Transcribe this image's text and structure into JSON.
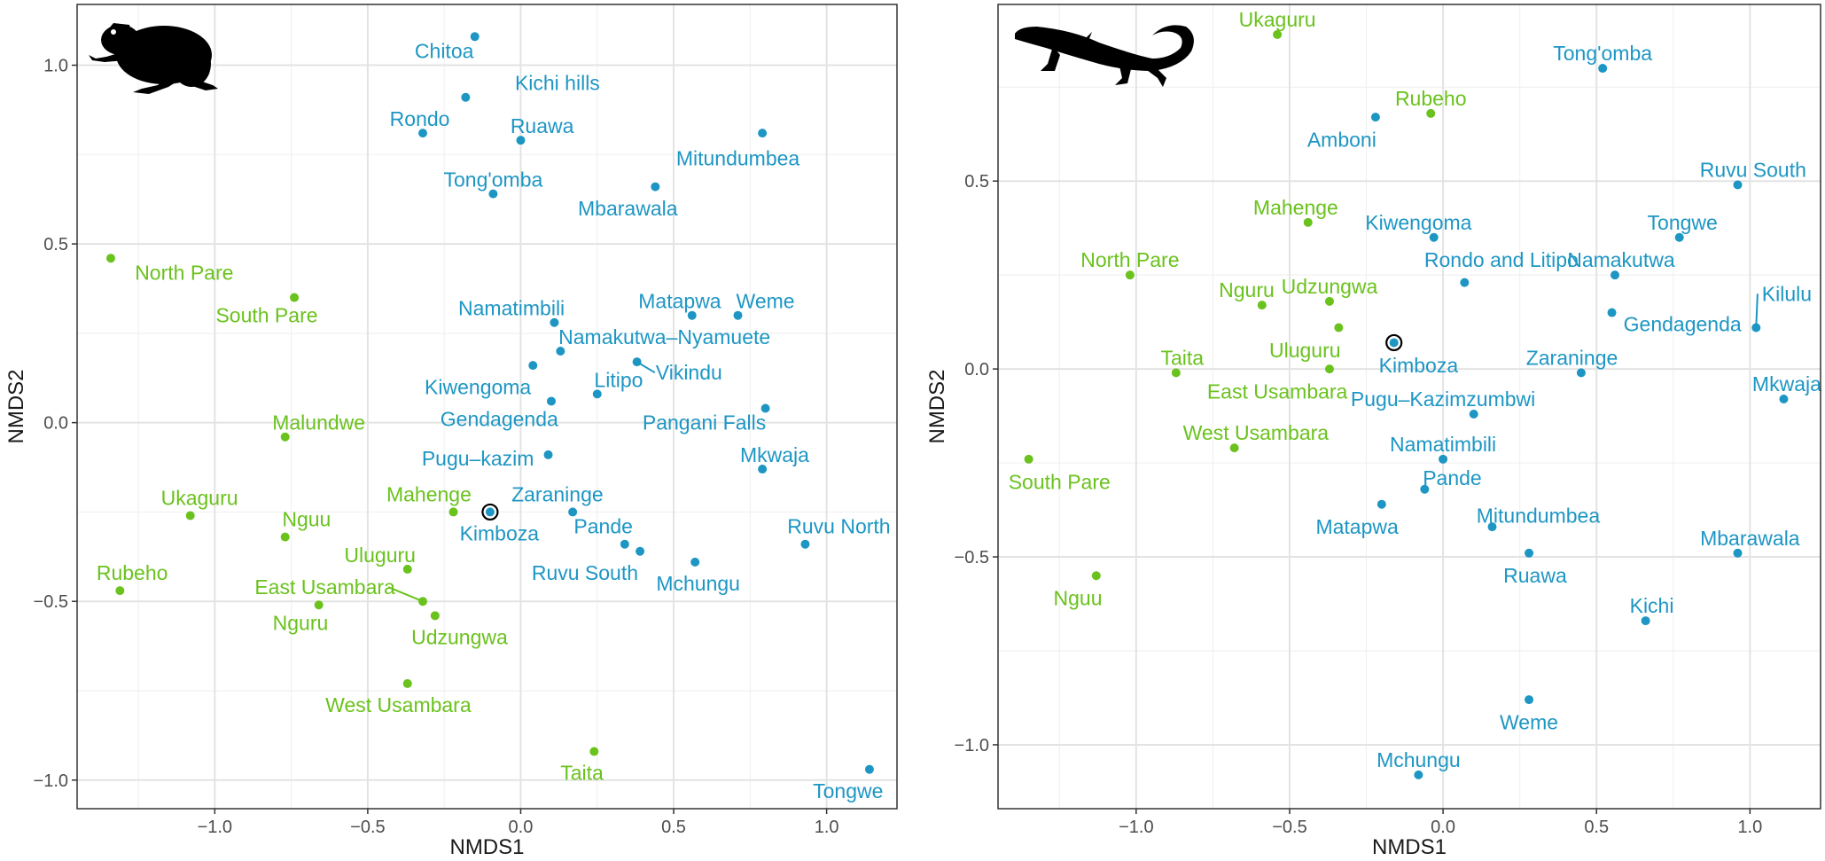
{
  "colors": {
    "green": "#6ac21d",
    "blue": "#1d96c4",
    "highlight": "#000000",
    "grid_major": "#e3e3e3",
    "grid_minor": "#f1f1f1",
    "silhouette": "#000000"
  },
  "chart_data": [
    {
      "type": "scatter",
      "silhouette": "frog-icon",
      "xlabel": "NMDS1",
      "ylabel": "NMDS2",
      "xlim": [
        -1.45,
        1.23
      ],
      "ylim": [
        -1.08,
        1.17
      ],
      "xticks": [
        -1.0,
        -0.5,
        0.0,
        0.5,
        1.0
      ],
      "xtick_labels": [
        "−1.0",
        "−0.5",
        "0.0",
        "0.5",
        "1.0"
      ],
      "yticks": [
        -1.0,
        -0.5,
        0.0,
        0.5,
        1.0
      ],
      "ytick_labels": [
        "−1.0",
        "−0.5",
        "0.0",
        "0.5",
        "1.0"
      ],
      "grid": true,
      "points": [
        {
          "label": "Chitoa",
          "x": -0.15,
          "y": 1.08,
          "group": "blue",
          "lx": -0.25,
          "ly": 1.04
        },
        {
          "label": "Kichi hills",
          "x": -0.18,
          "y": 0.91,
          "group": "blue",
          "lx": 0.12,
          "ly": 0.95
        },
        {
          "label": "Rondo",
          "x": -0.32,
          "y": 0.81,
          "group": "blue",
          "lx": -0.33,
          "ly": 0.85
        },
        {
          "label": "Ruawa",
          "x": 0.0,
          "y": 0.79,
          "group": "blue",
          "lx": 0.07,
          "ly": 0.83
        },
        {
          "label": "Mitundumbea",
          "x": 0.79,
          "y": 0.81,
          "group": "blue",
          "lx": 0.71,
          "ly": 0.74
        },
        {
          "label": "Tong'omba",
          "x": -0.09,
          "y": 0.64,
          "group": "blue",
          "lx": -0.09,
          "ly": 0.68
        },
        {
          "label": "Mbarawala",
          "x": 0.44,
          "y": 0.66,
          "group": "blue",
          "lx": 0.35,
          "ly": 0.6
        },
        {
          "label": "Namatimbili",
          "x": 0.11,
          "y": 0.28,
          "group": "blue",
          "lx": -0.03,
          "ly": 0.32
        },
        {
          "label": "Matapwa",
          "x": 0.56,
          "y": 0.3,
          "group": "blue",
          "lx": 0.52,
          "ly": 0.34
        },
        {
          "label": "Weme",
          "x": 0.71,
          "y": 0.3,
          "group": "blue",
          "lx": 0.8,
          "ly": 0.34
        },
        {
          "label": "Namakutwa–Nyamuete",
          "x": 0.13,
          "y": 0.2,
          "group": "blue",
          "lx": 0.47,
          "ly": 0.24
        },
        {
          "label": "Vikindu",
          "x": 0.38,
          "y": 0.17,
          "group": "blue",
          "lx": 0.55,
          "ly": 0.14,
          "leader": true
        },
        {
          "label": "Kiwengoma",
          "x": 0.04,
          "y": 0.16,
          "group": "blue",
          "lx": -0.14,
          "ly": 0.1
        },
        {
          "label": "Litipo",
          "x": 0.25,
          "y": 0.08,
          "group": "blue",
          "lx": 0.32,
          "ly": 0.12
        },
        {
          "label": "Gendagenda",
          "x": 0.1,
          "y": 0.06,
          "group": "blue",
          "lx": -0.07,
          "ly": 0.01
        },
        {
          "label": "Pangani Falls",
          "x": 0.8,
          "y": 0.04,
          "group": "blue",
          "lx": 0.6,
          "ly": 0.0
        },
        {
          "label": "Pugu–kazim",
          "x": 0.09,
          "y": -0.09,
          "group": "blue",
          "lx": -0.14,
          "ly": -0.1
        },
        {
          "label": "Mkwaja",
          "x": 0.79,
          "y": -0.13,
          "group": "blue",
          "lx": 0.83,
          "ly": -0.09
        },
        {
          "label": "Zaraninge",
          "x": 0.17,
          "y": -0.25,
          "group": "blue",
          "lx": 0.12,
          "ly": -0.2
        },
        {
          "label": "Kimboza",
          "x": -0.1,
          "y": -0.25,
          "group": "blue",
          "highlight": true,
          "lx": -0.07,
          "ly": -0.31
        },
        {
          "label": "Pande",
          "x": 0.34,
          "y": -0.34,
          "group": "blue",
          "lx": 0.27,
          "ly": -0.29
        },
        {
          "label": "Ruvu North",
          "x": 0.93,
          "y": -0.34,
          "group": "blue",
          "lx": 1.04,
          "ly": -0.29
        },
        {
          "label": "Ruvu South",
          "x": 0.39,
          "y": -0.36,
          "group": "blue",
          "lx": 0.21,
          "ly": -0.42
        },
        {
          "label": "Mchungu",
          "x": 0.57,
          "y": -0.39,
          "group": "blue",
          "lx": 0.58,
          "ly": -0.45
        },
        {
          "label": "Tongwe",
          "x": 1.14,
          "y": -0.97,
          "group": "blue",
          "lx": 1.07,
          "ly": -1.03
        },
        {
          "label": "North Pare",
          "x": -1.34,
          "y": 0.46,
          "group": "green",
          "lx": -1.1,
          "ly": 0.42
        },
        {
          "label": "South Pare",
          "x": -0.74,
          "y": 0.35,
          "group": "green",
          "lx": -0.83,
          "ly": 0.3
        },
        {
          "label": "Malundwe",
          "x": -0.77,
          "y": -0.04,
          "group": "green",
          "lx": -0.66,
          "ly": 0.0
        },
        {
          "label": "Ukaguru",
          "x": -1.08,
          "y": -0.26,
          "group": "green",
          "lx": -1.05,
          "ly": -0.21
        },
        {
          "label": "Nguu",
          "x": -0.77,
          "y": -0.32,
          "group": "green",
          "lx": -0.7,
          "ly": -0.27
        },
        {
          "label": "Mahenge",
          "x": -0.22,
          "y": -0.25,
          "group": "green",
          "lx": -0.3,
          "ly": -0.2
        },
        {
          "label": "Uluguru",
          "x": -0.37,
          "y": -0.41,
          "group": "green",
          "lx": -0.46,
          "ly": -0.37
        },
        {
          "label": "Rubeho",
          "x": -1.31,
          "y": -0.47,
          "group": "green",
          "lx": -1.27,
          "ly": -0.42
        },
        {
          "label": "East Usambara",
          "x": -0.32,
          "y": -0.5,
          "group": "green",
          "lx": -0.64,
          "ly": -0.46,
          "leader": true
        },
        {
          "label": "Nguru",
          "x": -0.66,
          "y": -0.51,
          "group": "green",
          "lx": -0.72,
          "ly": -0.56
        },
        {
          "label": "Udzungwa",
          "x": -0.28,
          "y": -0.54,
          "group": "green",
          "lx": -0.2,
          "ly": -0.6
        },
        {
          "label": "West Usambara",
          "x": -0.37,
          "y": -0.73,
          "group": "green",
          "lx": -0.4,
          "ly": -0.79
        },
        {
          "label": "Taita",
          "x": 0.24,
          "y": -0.92,
          "group": "green",
          "lx": 0.2,
          "ly": -0.98
        }
      ]
    },
    {
      "type": "scatter",
      "silhouette": "gecko-icon",
      "xlabel": "NMDS1",
      "ylabel": "NMDS2",
      "xlim": [
        -1.45,
        1.23
      ],
      "ylim": [
        -1.17,
        0.97
      ],
      "xticks": [
        -1.0,
        -0.5,
        0.0,
        0.5,
        1.0
      ],
      "xtick_labels": [
        "−1.0",
        "−0.5",
        "0.0",
        "0.5",
        "1.0"
      ],
      "yticks": [
        -1.0,
        -0.5,
        0.0,
        0.5
      ],
      "ytick_labels": [
        "−1.0",
        "−0.5",
        "0.0",
        "0.5"
      ],
      "grid": true,
      "points": [
        {
          "label": "Ukaguru",
          "x": -0.54,
          "y": 0.89,
          "group": "green",
          "lx": -0.54,
          "ly": 0.93
        },
        {
          "label": "Rubeho",
          "x": -0.04,
          "y": 0.68,
          "group": "green",
          "lx": -0.04,
          "ly": 0.72
        },
        {
          "label": "Mahenge",
          "x": -0.44,
          "y": 0.39,
          "group": "green",
          "lx": -0.48,
          "ly": 0.43
        },
        {
          "label": "North Pare",
          "x": -1.02,
          "y": 0.25,
          "group": "green",
          "lx": -1.02,
          "ly": 0.29
        },
        {
          "label": "Nguru",
          "x": -0.59,
          "y": 0.17,
          "group": "green",
          "lx": -0.64,
          "ly": 0.21
        },
        {
          "label": "Udzungwa",
          "x": -0.37,
          "y": 0.18,
          "group": "green",
          "lx": -0.37,
          "ly": 0.22
        },
        {
          "label": "Uluguru",
          "x": -0.34,
          "y": 0.11,
          "group": "green",
          "lx": -0.45,
          "ly": 0.05
        },
        {
          "label": "Taita",
          "x": -0.87,
          "y": -0.01,
          "group": "green",
          "lx": -0.85,
          "ly": 0.03
        },
        {
          "label": "East Usambara",
          "x": -0.37,
          "y": 0.0,
          "group": "green",
          "lx": -0.54,
          "ly": -0.06
        },
        {
          "label": "West Usambara",
          "x": -0.68,
          "y": -0.21,
          "group": "green",
          "lx": -0.61,
          "ly": -0.17
        },
        {
          "label": "South Pare",
          "x": -1.35,
          "y": -0.24,
          "group": "green",
          "lx": -1.25,
          "ly": -0.3
        },
        {
          "label": "Nguu",
          "x": -1.13,
          "y": -0.55,
          "group": "green",
          "lx": -1.19,
          "ly": -0.61
        },
        {
          "label": "Tong'omba",
          "x": 0.52,
          "y": 0.8,
          "group": "blue",
          "lx": 0.52,
          "ly": 0.84
        },
        {
          "label": "Amboni",
          "x": -0.22,
          "y": 0.67,
          "group": "blue",
          "lx": -0.33,
          "ly": 0.61
        },
        {
          "label": "Ruvu South",
          "x": 0.96,
          "y": 0.49,
          "group": "blue",
          "lx": 1.01,
          "ly": 0.53
        },
        {
          "label": "Tongwe",
          "x": 0.77,
          "y": 0.35,
          "group": "blue",
          "lx": 0.78,
          "ly": 0.39
        },
        {
          "label": "Kiwengoma",
          "x": -0.03,
          "y": 0.35,
          "group": "blue",
          "lx": -0.08,
          "ly": 0.39
        },
        {
          "label": "Rondo and Litipo",
          "x": 0.07,
          "y": 0.23,
          "group": "blue",
          "lx": 0.19,
          "ly": 0.29
        },
        {
          "label": "Namakutwa",
          "x": 0.56,
          "y": 0.25,
          "group": "blue",
          "lx": 0.58,
          "ly": 0.29
        },
        {
          "label": "Kilulu",
          "x": 1.02,
          "y": 0.11,
          "group": "blue",
          "lx": 1.12,
          "ly": 0.2,
          "leader": true
        },
        {
          "label": "Gendagenda",
          "x": 0.55,
          "y": 0.15,
          "group": "blue",
          "lx": 0.78,
          "ly": 0.12
        },
        {
          "label": "Kimboza",
          "x": -0.16,
          "y": 0.07,
          "group": "blue",
          "highlight": true,
          "lx": -0.08,
          "ly": 0.01
        },
        {
          "label": "Zaraninge",
          "x": 0.45,
          "y": -0.01,
          "group": "blue",
          "lx": 0.42,
          "ly": 0.03
        },
        {
          "label": "Mkwaja",
          "x": 1.11,
          "y": -0.08,
          "group": "blue",
          "lx": 1.12,
          "ly": -0.04
        },
        {
          "label": "Pugu–Kazimzumbwi",
          "x": 0.1,
          "y": -0.12,
          "group": "blue",
          "lx": 0.0,
          "ly": -0.08
        },
        {
          "label": "Namatimbili",
          "x": 0.0,
          "y": -0.24,
          "group": "blue",
          "lx": 0.0,
          "ly": -0.2
        },
        {
          "label": "Pande",
          "x": -0.06,
          "y": -0.32,
          "group": "blue",
          "lx": 0.03,
          "ly": -0.29
        },
        {
          "label": "Matapwa",
          "x": -0.2,
          "y": -0.36,
          "group": "blue",
          "lx": -0.28,
          "ly": -0.42
        },
        {
          "label": "Mitundumbea",
          "x": 0.16,
          "y": -0.42,
          "group": "blue",
          "lx": 0.31,
          "ly": -0.39
        },
        {
          "label": "Ruawa",
          "x": 0.28,
          "y": -0.49,
          "group": "blue",
          "lx": 0.3,
          "ly": -0.55
        },
        {
          "label": "Mbarawala",
          "x": 0.96,
          "y": -0.49,
          "group": "blue",
          "lx": 1.0,
          "ly": -0.45
        },
        {
          "label": "Kichi",
          "x": 0.66,
          "y": -0.67,
          "group": "blue",
          "lx": 0.68,
          "ly": -0.63
        },
        {
          "label": "Weme",
          "x": 0.28,
          "y": -0.88,
          "group": "blue",
          "lx": 0.28,
          "ly": -0.94
        },
        {
          "label": "Mchungu",
          "x": -0.08,
          "y": -1.08,
          "group": "blue",
          "lx": -0.08,
          "ly": -1.04
        }
      ]
    }
  ]
}
